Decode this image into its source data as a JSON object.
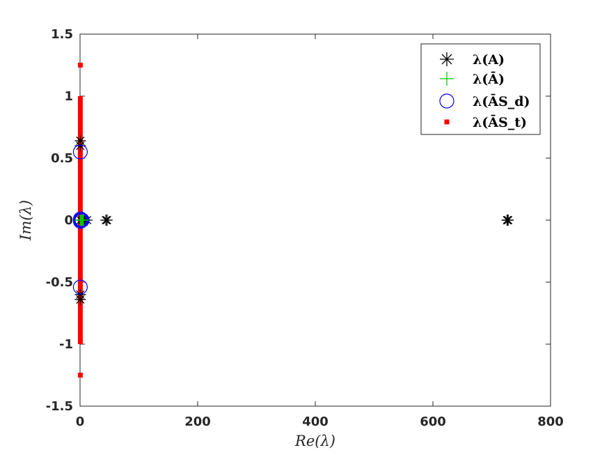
{
  "chart_data": {
    "type": "scatter",
    "xlabel": "Re(λ)",
    "ylabel": "Im(λ)",
    "xlim": [
      0,
      800
    ],
    "ylim": [
      -1.5,
      1.5
    ],
    "xticks": [
      "0",
      "200",
      "400",
      "600",
      "800"
    ],
    "yticks": [
      "1.5",
      "1",
      "0.5",
      "0",
      "-0.5",
      "-1",
      "-1.5"
    ],
    "grid": false,
    "legend_position": "top-right",
    "series": [
      {
        "name": "λ(A)",
        "marker": "asterisk",
        "color": "#000000",
        "points": [
          [
            727,
            0
          ],
          [
            726,
            0
          ],
          [
            728,
            0
          ],
          [
            46,
            0
          ],
          [
            44,
            0
          ],
          [
            12,
            0
          ],
          [
            8,
            0
          ],
          [
            4,
            0
          ],
          [
            1,
            0
          ],
          [
            0.5,
            0.64
          ],
          [
            0.5,
            -0.64
          ],
          [
            0.5,
            0.6
          ],
          [
            0.5,
            -0.6
          ]
        ]
      },
      {
        "name": "λ(Ā)",
        "marker": "plus",
        "color": "#00cc00",
        "points": [
          [
            0.3,
            0
          ],
          [
            1.2,
            0
          ],
          [
            2.5,
            0
          ],
          [
            4,
            0
          ],
          [
            5.5,
            0
          ]
        ]
      },
      {
        "name": "λ(ĀS_d)",
        "marker": "circle",
        "color": "#0000ff",
        "points": [
          [
            0.5,
            0.55
          ],
          [
            0.5,
            -0.54
          ],
          [
            0.5,
            0
          ],
          [
            1.5,
            0
          ],
          [
            2.5,
            0
          ],
          [
            3.5,
            0
          ],
          [
            0.8,
            0.01
          ],
          [
            0.8,
            -0.01
          ]
        ]
      },
      {
        "name": "λ(ĀS_t)",
        "marker": "square",
        "color": "#ff0000",
        "points": [
          [
            0.5,
            1.25
          ],
          [
            0.5,
            -1.25
          ]
        ],
        "segments": [
          [
            [
              0.5,
              -1.0
            ],
            [
              0.5,
              1.0
            ]
          ]
        ]
      }
    ]
  }
}
